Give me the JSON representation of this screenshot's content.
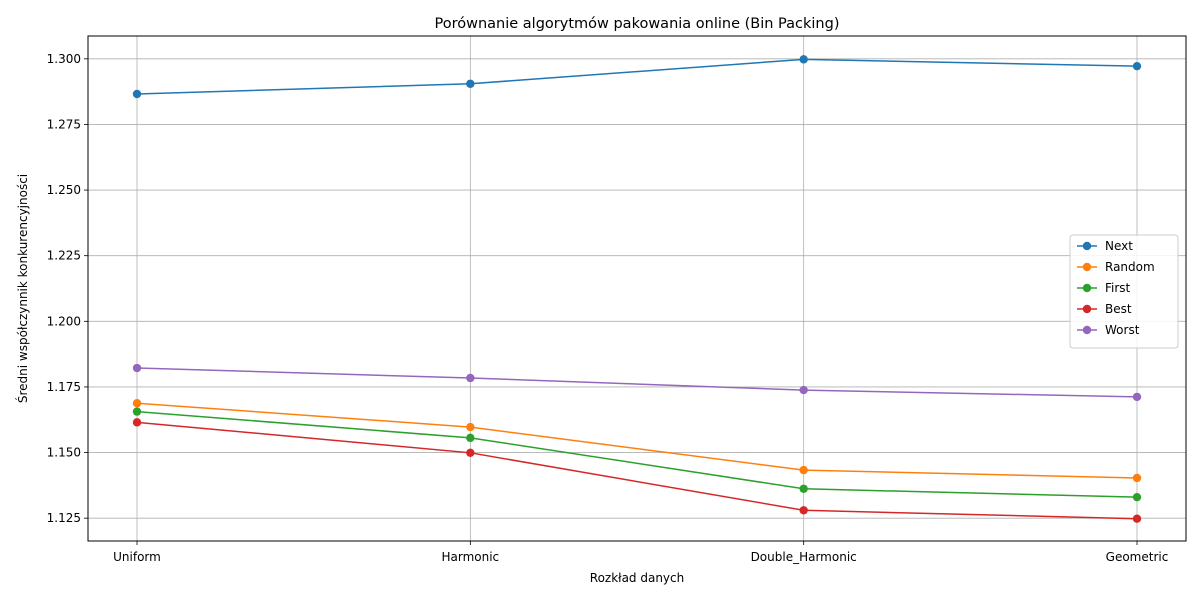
{
  "chart_data": {
    "type": "line",
    "title": "Porównanie algorytmów pakowania online (Bin Packing)",
    "xlabel": "Rozkład danych",
    "ylabel": "Średni współczynnik konkurencyjności",
    "categories": [
      "Uniform",
      "Harmonic",
      "Double_Harmonic",
      "Geometric"
    ],
    "ylim": [
      1.1163,
      1.3087
    ],
    "yticks": [
      "1.125",
      "1.150",
      "1.175",
      "1.200",
      "1.225",
      "1.250",
      "1.275",
      "1.300"
    ],
    "grid": true,
    "legend_position": "center-right",
    "series": [
      {
        "name": "Next",
        "color": "#1f77b4",
        "values": [
          1.2866,
          1.2905,
          1.2998,
          1.2972
        ]
      },
      {
        "name": "Random",
        "color": "#ff7f0e",
        "values": [
          1.1688,
          1.1597,
          1.1433,
          1.1403
        ]
      },
      {
        "name": "First",
        "color": "#2ca02c",
        "values": [
          1.1656,
          1.1556,
          1.1362,
          1.133
        ]
      },
      {
        "name": "Best",
        "color": "#d62728",
        "values": [
          1.1615,
          1.1499,
          1.128,
          1.1248
        ]
      },
      {
        "name": "Worst",
        "color": "#9467bd",
        "values": [
          1.1822,
          1.1784,
          1.1738,
          1.1712
        ]
      }
    ]
  }
}
